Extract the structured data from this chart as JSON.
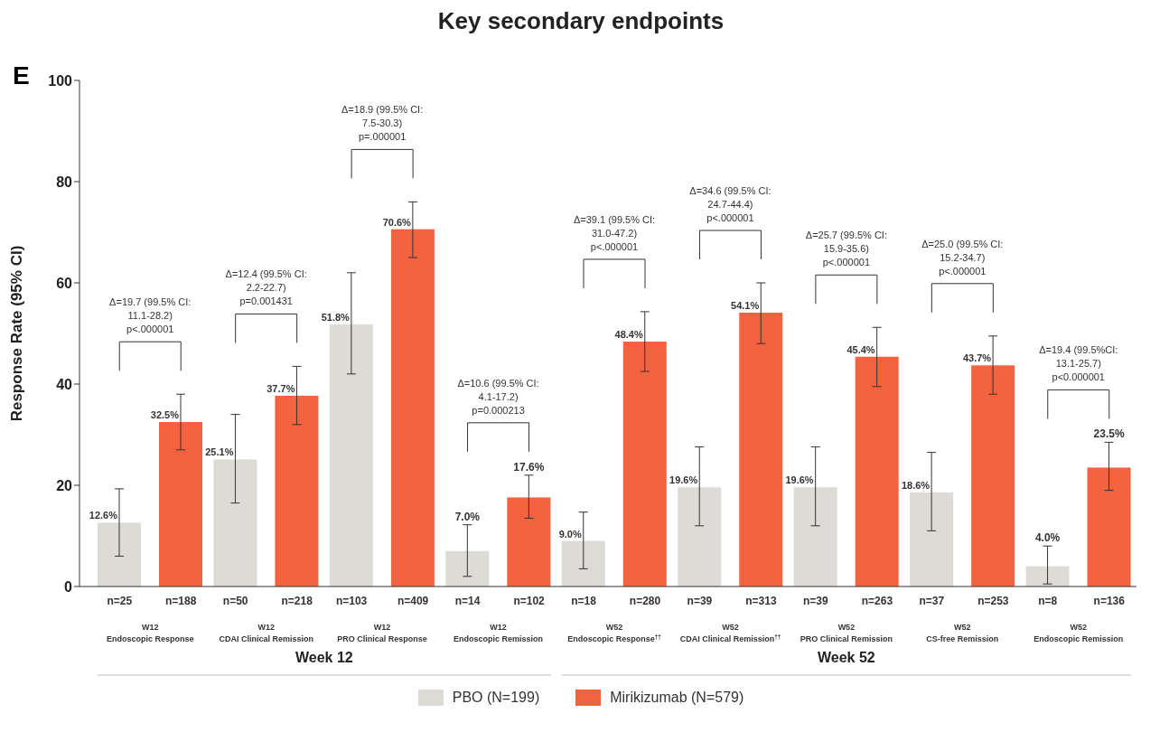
{
  "chart_data": {
    "type": "bar",
    "title": "Key secondary endpoints",
    "ylabel": "Response Rate (95% CI)",
    "categories": [
      "W12\nEndoscopic Response",
      "W12\nCDAI Clinical Remission",
      "W12\nPRO Clinical Response",
      "W12\nEndoscopic Remission",
      "W52\nEndoscopic Response$^{††}$",
      "W52\nCDAI Clinical Remission$^{††}$",
      "W52\nPRO Clinical Remission",
      "W52\nCS-free Remission",
      "W52\nEndoscopic Remission"
    ],
    "series": [
      {
        "name": "PBO (N=199)",
        "color": "#dddbd5",
        "values": [
          12.6,
          25.1,
          51.8,
          7.0,
          9.0,
          19.6,
          19.6,
          18.6,
          4.0
        ],
        "errors": [
          [
            6,
            19.3
          ],
          [
            16.5,
            34
          ],
          [
            42,
            62
          ],
          [
            2,
            12.2
          ],
          [
            3.5,
            14.7
          ],
          [
            12,
            27.6
          ],
          [
            12,
            27.6
          ],
          [
            11,
            26.5
          ],
          [
            0.5,
            8
          ]
        ],
        "value_labels": [
          "12.6%",
          "25.1%",
          "51.8%",
          "7.0%",
          "9.0%",
          "19.6%",
          "19.6%",
          "18.6%",
          "4.0%"
        ]
      },
      {
        "name": "Mirikizumab (N=579)",
        "color": "#f4623f",
        "values": [
          32.5,
          37.7,
          70.6,
          17.6,
          48.4,
          54.1,
          45.4,
          43.7,
          23.5
        ],
        "errors": [
          [
            27,
            38
          ],
          [
            32,
            43.5
          ],
          [
            65,
            76
          ],
          [
            13.5,
            22
          ],
          [
            42.5,
            54.3
          ],
          [
            48,
            60
          ],
          [
            39.5,
            51.2
          ],
          [
            38,
            49.5
          ],
          [
            19,
            28.5
          ]
        ],
        "value_labels": [
          "32.5%",
          "37.7%",
          "70.6%",
          "17.6%",
          "48.4%",
          "54.1%",
          "45.4%",
          "43.7%",
          "23.5%"
        ]
      }
    ],
    "ylim": [
      0,
      100
    ],
    "yticks": [
      0,
      20,
      40,
      60,
      80,
      100
    ],
    "legend": "bottom",
    "annotations": [
      "E",
      "Δ=19.7 (99.5% CI:\n11.1-28.2)\np<.000001",
      "Δ=12.4 (99.5% CI:\n2.2-22.7)\np=0.001431",
      "Δ=18.9 (99.5% CI:\n7.5-30.3)\np=.000001",
      "Δ=10.6 (99.5% CI:\n4.1-17.2)\np=0.000213",
      "Δ=39.1 (99.5% CI:\n31.0-47.2)\np<.000001",
      "Δ=34.6 (99.5% CI:\n24.7-44.4)\np<.000001",
      "Δ=25.7 (99.5% CI:\n15.9-35.6)\np<.000001",
      "Δ=25.0 (99.5% CI:\n15.2-34.7)\np<.000001",
      "Δ=19.4 (99.5%CI:\n13.1-25.7)\np<0.000001",
      "n=25",
      "n=188",
      "n=50",
      "n=218",
      "n=103",
      "n=409",
      "n=14",
      "n=102",
      "n=18",
      "n=280",
      "n=39",
      "n=313",
      "n=39",
      "n=263",
      "n=37",
      "n=253",
      "n=8",
      "n=136",
      "Week 12",
      "Week 52"
    ]
  }
}
